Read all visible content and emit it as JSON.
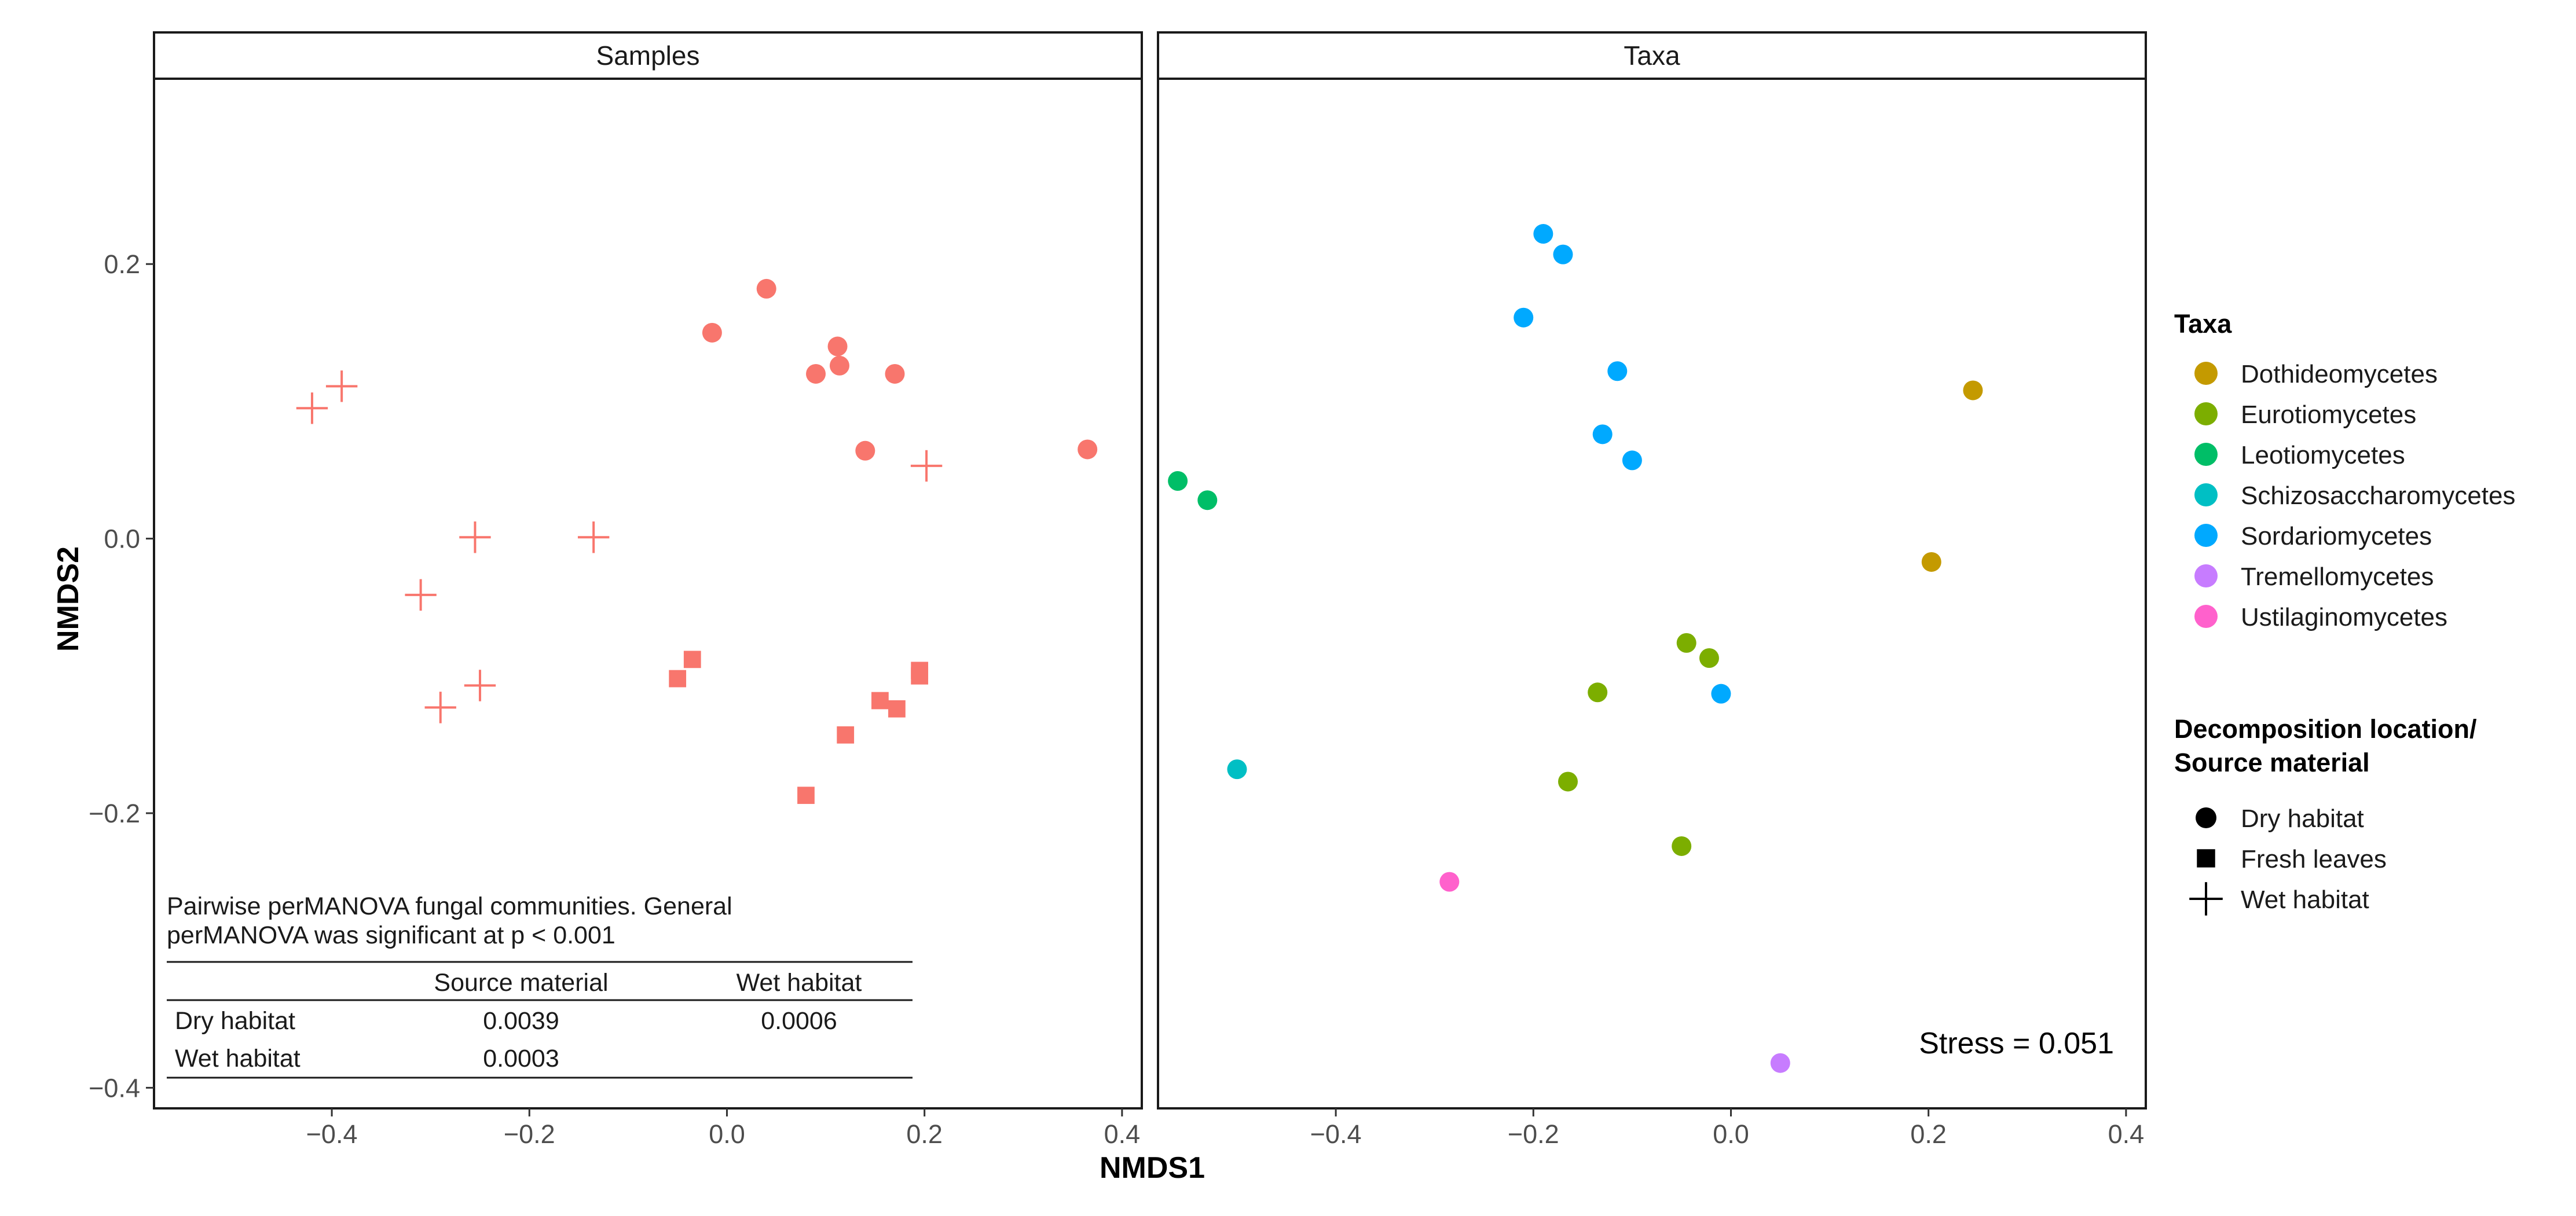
{
  "chart_data": {
    "type": "scatter",
    "xlabel": "NMDS1",
    "ylabel": "NMDS2",
    "xlim": [
      -0.58,
      0.42
    ],
    "ylim": [
      -0.415,
      0.335
    ],
    "x_ticks": [
      -0.4,
      -0.2,
      0.0,
      0.2,
      0.4
    ],
    "x_tick_labels": [
      "−0.4",
      "−0.2",
      "0.0",
      "0.2",
      "0.4"
    ],
    "y_ticks": [
      -0.4,
      -0.2,
      0.0,
      0.2
    ],
    "y_tick_labels": [
      "−0.4",
      "−0.2",
      "0.0",
      "0.2"
    ],
    "grid": false,
    "panels": [
      {
        "strip": "Samples",
        "color": "#F8766D",
        "points": [
          {
            "x": 0.04,
            "y": 0.182,
            "shape": "Dry habitat"
          },
          {
            "x": -0.015,
            "y": 0.15,
            "shape": "Dry habitat"
          },
          {
            "x": 0.112,
            "y": 0.14,
            "shape": "Dry habitat"
          },
          {
            "x": 0.114,
            "y": 0.126,
            "shape": "Dry habitat"
          },
          {
            "x": 0.09,
            "y": 0.12,
            "shape": "Dry habitat"
          },
          {
            "x": 0.17,
            "y": 0.12,
            "shape": "Dry habitat"
          },
          {
            "x": 0.14,
            "y": 0.064,
            "shape": "Dry habitat"
          },
          {
            "x": 0.365,
            "y": 0.065,
            "shape": "Dry habitat"
          },
          {
            "x": -0.035,
            "y": -0.088,
            "shape": "Fresh leaves"
          },
          {
            "x": -0.05,
            "y": -0.102,
            "shape": "Fresh leaves"
          },
          {
            "x": 0.195,
            "y": -0.096,
            "shape": "Fresh leaves"
          },
          {
            "x": 0.195,
            "y": -0.1,
            "shape": "Fresh leaves"
          },
          {
            "x": 0.155,
            "y": -0.118,
            "shape": "Fresh leaves"
          },
          {
            "x": 0.172,
            "y": -0.124,
            "shape": "Fresh leaves"
          },
          {
            "x": 0.12,
            "y": -0.143,
            "shape": "Fresh leaves"
          },
          {
            "x": 0.08,
            "y": -0.187,
            "shape": "Fresh leaves"
          },
          {
            "x": -0.39,
            "y": 0.111,
            "shape": "Wet habitat"
          },
          {
            "x": -0.42,
            "y": 0.095,
            "shape": "Wet habitat"
          },
          {
            "x": 0.202,
            "y": 0.053,
            "shape": "Wet habitat"
          },
          {
            "x": -0.255,
            "y": 0.001,
            "shape": "Wet habitat"
          },
          {
            "x": -0.135,
            "y": 0.001,
            "shape": "Wet habitat"
          },
          {
            "x": -0.31,
            "y": -0.041,
            "shape": "Wet habitat"
          },
          {
            "x": -0.25,
            "y": -0.107,
            "shape": "Wet habitat"
          },
          {
            "x": -0.29,
            "y": -0.123,
            "shape": "Wet habitat"
          }
        ],
        "table": {
          "caption_lines": [
            "Pairwise perMANOVA fungal communities. General",
            "perMANOVA was significant at p < 0.001"
          ],
          "columns": [
            "",
            "Source material",
            "Wet habitat"
          ],
          "rows": [
            [
              "Dry habitat",
              "0.0039",
              "0.0006"
            ],
            [
              "Wet habitat",
              "0.0003",
              ""
            ]
          ]
        }
      },
      {
        "strip": "Taxa",
        "stress_label": "Stress = 0.051",
        "points": [
          {
            "x": -0.19,
            "y": 0.222,
            "taxon": "Sordariomycetes"
          },
          {
            "x": -0.17,
            "y": 0.207,
            "taxon": "Sordariomycetes"
          },
          {
            "x": -0.21,
            "y": 0.161,
            "taxon": "Sordariomycetes"
          },
          {
            "x": -0.115,
            "y": 0.122,
            "taxon": "Sordariomycetes"
          },
          {
            "x": -0.13,
            "y": 0.076,
            "taxon": "Sordariomycetes"
          },
          {
            "x": -0.1,
            "y": 0.057,
            "taxon": "Sordariomycetes"
          },
          {
            "x": -0.01,
            "y": -0.113,
            "taxon": "Sordariomycetes"
          },
          {
            "x": 0.245,
            "y": 0.108,
            "taxon": "Dothideomycetes"
          },
          {
            "x": 0.203,
            "y": -0.017,
            "taxon": "Dothideomycetes"
          },
          {
            "x": -0.045,
            "y": -0.076,
            "taxon": "Eurotiomycetes"
          },
          {
            "x": -0.022,
            "y": -0.087,
            "taxon": "Eurotiomycetes"
          },
          {
            "x": -0.135,
            "y": -0.112,
            "taxon": "Eurotiomycetes"
          },
          {
            "x": -0.165,
            "y": -0.177,
            "taxon": "Eurotiomycetes"
          },
          {
            "x": -0.05,
            "y": -0.224,
            "taxon": "Eurotiomycetes"
          },
          {
            "x": -0.56,
            "y": 0.042,
            "taxon": "Leotiomycetes"
          },
          {
            "x": -0.53,
            "y": 0.028,
            "taxon": "Leotiomycetes"
          },
          {
            "x": -0.5,
            "y": -0.168,
            "taxon": "Schizosaccharomycetes"
          },
          {
            "x": 0.05,
            "y": -0.382,
            "taxon": "Tremellomycetes"
          },
          {
            "x": -0.285,
            "y": -0.25,
            "taxon": "Ustilaginomycetes"
          }
        ]
      }
    ],
    "legends": [
      {
        "title": "Taxa",
        "kind": "color",
        "items": [
          {
            "label": "Dothideomycetes",
            "color": "#C49A00"
          },
          {
            "label": "Eurotiomycetes",
            "color": "#7CAE00"
          },
          {
            "label": "Leotiomycetes",
            "color": "#00BE67"
          },
          {
            "label": "Schizosaccharomycetes",
            "color": "#00BFC4"
          },
          {
            "label": "Sordariomycetes",
            "color": "#00A9FF"
          },
          {
            "label": "Tremellomycetes",
            "color": "#C77CFF"
          },
          {
            "label": "Ustilaginomycetes",
            "color": "#FF61CC"
          }
        ]
      },
      {
        "title_lines": [
          "Decomposition location/",
          "Source material"
        ],
        "kind": "shape",
        "items": [
          {
            "label": "Dry habitat",
            "shape": "circle"
          },
          {
            "label": "Fresh leaves",
            "shape": "square"
          },
          {
            "label": "Wet habitat",
            "shape": "plus"
          }
        ]
      }
    ],
    "legend_position": "right"
  }
}
